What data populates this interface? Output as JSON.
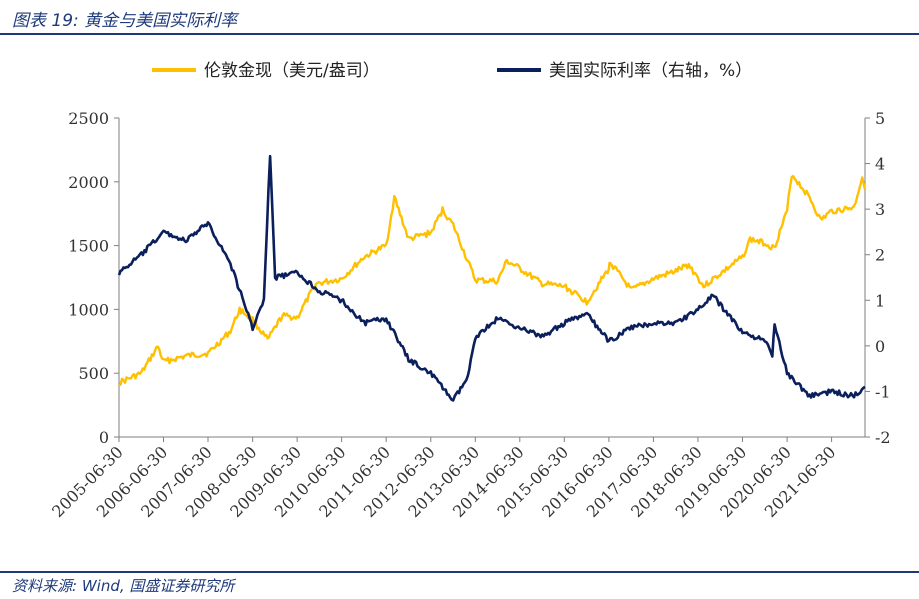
{
  "header": {
    "title": "图表 19:  黄金与美国实际利率"
  },
  "footer": {
    "source": "资料来源:  Wind,  国盛证券研究所"
  },
  "colors": {
    "gold": "#FFC000",
    "rate": "#0B1F5C",
    "axis": "#7f7f7f",
    "brand": "#1f3a7a"
  },
  "chart_data": {
    "type": "line",
    "legend_position": "top",
    "grid": false,
    "x_tick_labels": [
      "2005-06-30",
      "2006-06-30",
      "2007-06-30",
      "2008-06-30",
      "2009-06-30",
      "2010-06-30",
      "2011-06-30",
      "2012-06-30",
      "2013-06-30",
      "2014-06-30",
      "2015-06-30",
      "2016-06-30",
      "2017-06-30",
      "2018-06-30",
      "2019-06-30",
      "2020-06-30",
      "2021-06-30"
    ],
    "x_range": [
      "2005-06-30",
      "2022-03-31"
    ],
    "y_left": {
      "range": [
        0,
        2500
      ],
      "ticks": [
        "0",
        "500",
        "1000",
        "1500",
        "2000",
        "2500"
      ]
    },
    "y_right": {
      "range": [
        -2,
        5
      ],
      "ticks": [
        "-2",
        "-1",
        "0",
        "1",
        "2",
        "3",
        "4",
        "5"
      ]
    },
    "series": [
      {
        "name": "伦敦金现（美元/盎司）",
        "axis": "left",
        "color": "#FFC000",
        "points": [
          [
            "2005-06-30",
            425
          ],
          [
            "2005-12-31",
            500
          ],
          [
            "2006-05-15",
            710
          ],
          [
            "2006-06-30",
            590
          ],
          [
            "2006-12-31",
            635
          ],
          [
            "2007-06-30",
            655
          ],
          [
            "2007-12-31",
            830
          ],
          [
            "2008-03-15",
            1000
          ],
          [
            "2008-06-30",
            920
          ],
          [
            "2008-10-31",
            760
          ],
          [
            "2009-03-01",
            950
          ],
          [
            "2009-06-30",
            935
          ],
          [
            "2009-12-01",
            1200
          ],
          [
            "2010-06-30",
            1240
          ],
          [
            "2010-12-31",
            1410
          ],
          [
            "2011-06-30",
            1500
          ],
          [
            "2011-09-05",
            1880
          ],
          [
            "2011-12-31",
            1550
          ],
          [
            "2012-06-30",
            1600
          ],
          [
            "2012-10-05",
            1780
          ],
          [
            "2012-12-31",
            1660
          ],
          [
            "2013-04-20",
            1400
          ],
          [
            "2013-06-30",
            1230
          ],
          [
            "2013-12-31",
            1220
          ],
          [
            "2014-03-15",
            1380
          ],
          [
            "2014-06-30",
            1320
          ],
          [
            "2014-12-31",
            1200
          ],
          [
            "2015-06-30",
            1180
          ],
          [
            "2015-12-31",
            1060
          ],
          [
            "2016-06-30",
            1320
          ],
          [
            "2016-07-10",
            1370
          ],
          [
            "2016-12-31",
            1150
          ],
          [
            "2017-06-30",
            1240
          ],
          [
            "2017-12-31",
            1300
          ],
          [
            "2018-04-15",
            1350
          ],
          [
            "2018-06-30",
            1250
          ],
          [
            "2018-08-15",
            1180
          ],
          [
            "2018-12-31",
            1280
          ],
          [
            "2019-06-30",
            1410
          ],
          [
            "2019-09-01",
            1550
          ],
          [
            "2019-12-31",
            1520
          ],
          [
            "2020-03-15",
            1480
          ],
          [
            "2020-06-30",
            1770
          ],
          [
            "2020-08-07",
            2060
          ],
          [
            "2020-12-31",
            1880
          ],
          [
            "2021-03-31",
            1700
          ],
          [
            "2021-06-30",
            1770
          ],
          [
            "2021-12-31",
            1800
          ],
          [
            "2022-03-08",
            2040
          ],
          [
            "2022-03-31",
            1940
          ]
        ]
      },
      {
        "name": "美国实际利率（右轴，%）",
        "axis": "right",
        "color": "#0B1F5C",
        "points": [
          [
            "2005-06-30",
            1.6
          ],
          [
            "2005-12-31",
            2.0
          ],
          [
            "2006-06-30",
            2.5
          ],
          [
            "2006-12-31",
            2.3
          ],
          [
            "2007-06-30",
            2.7
          ],
          [
            "2007-12-31",
            1.8
          ],
          [
            "2008-06-30",
            0.4
          ],
          [
            "2008-09-30",
            1.0
          ],
          [
            "2008-11-20",
            4.2
          ],
          [
            "2008-12-31",
            1.5
          ],
          [
            "2009-06-30",
            1.6
          ],
          [
            "2009-12-31",
            1.2
          ],
          [
            "2010-06-30",
            1.0
          ],
          [
            "2010-12-31",
            0.5
          ],
          [
            "2011-06-30",
            0.6
          ],
          [
            "2011-12-31",
            -0.3
          ],
          [
            "2012-06-30",
            -0.6
          ],
          [
            "2012-12-31",
            -1.2
          ],
          [
            "2013-04-30",
            -0.7
          ],
          [
            "2013-06-30",
            0.2
          ],
          [
            "2013-12-31",
            0.6
          ],
          [
            "2014-06-30",
            0.4
          ],
          [
            "2014-12-31",
            0.2
          ],
          [
            "2015-06-30",
            0.5
          ],
          [
            "2015-12-31",
            0.7
          ],
          [
            "2016-06-30",
            0.1
          ],
          [
            "2016-12-31",
            0.4
          ],
          [
            "2017-06-30",
            0.5
          ],
          [
            "2017-12-31",
            0.5
          ],
          [
            "2018-06-30",
            0.8
          ],
          [
            "2018-11-01",
            1.1
          ],
          [
            "2018-12-31",
            0.9
          ],
          [
            "2019-06-30",
            0.3
          ],
          [
            "2019-12-31",
            0.1
          ],
          [
            "2020-03-01",
            -0.2
          ],
          [
            "2020-03-20",
            0.5
          ],
          [
            "2020-06-30",
            -0.6
          ],
          [
            "2020-12-31",
            -1.1
          ],
          [
            "2021-06-30",
            -1.0
          ],
          [
            "2021-12-31",
            -1.1
          ],
          [
            "2022-03-31",
            -0.9
          ]
        ]
      }
    ]
  }
}
